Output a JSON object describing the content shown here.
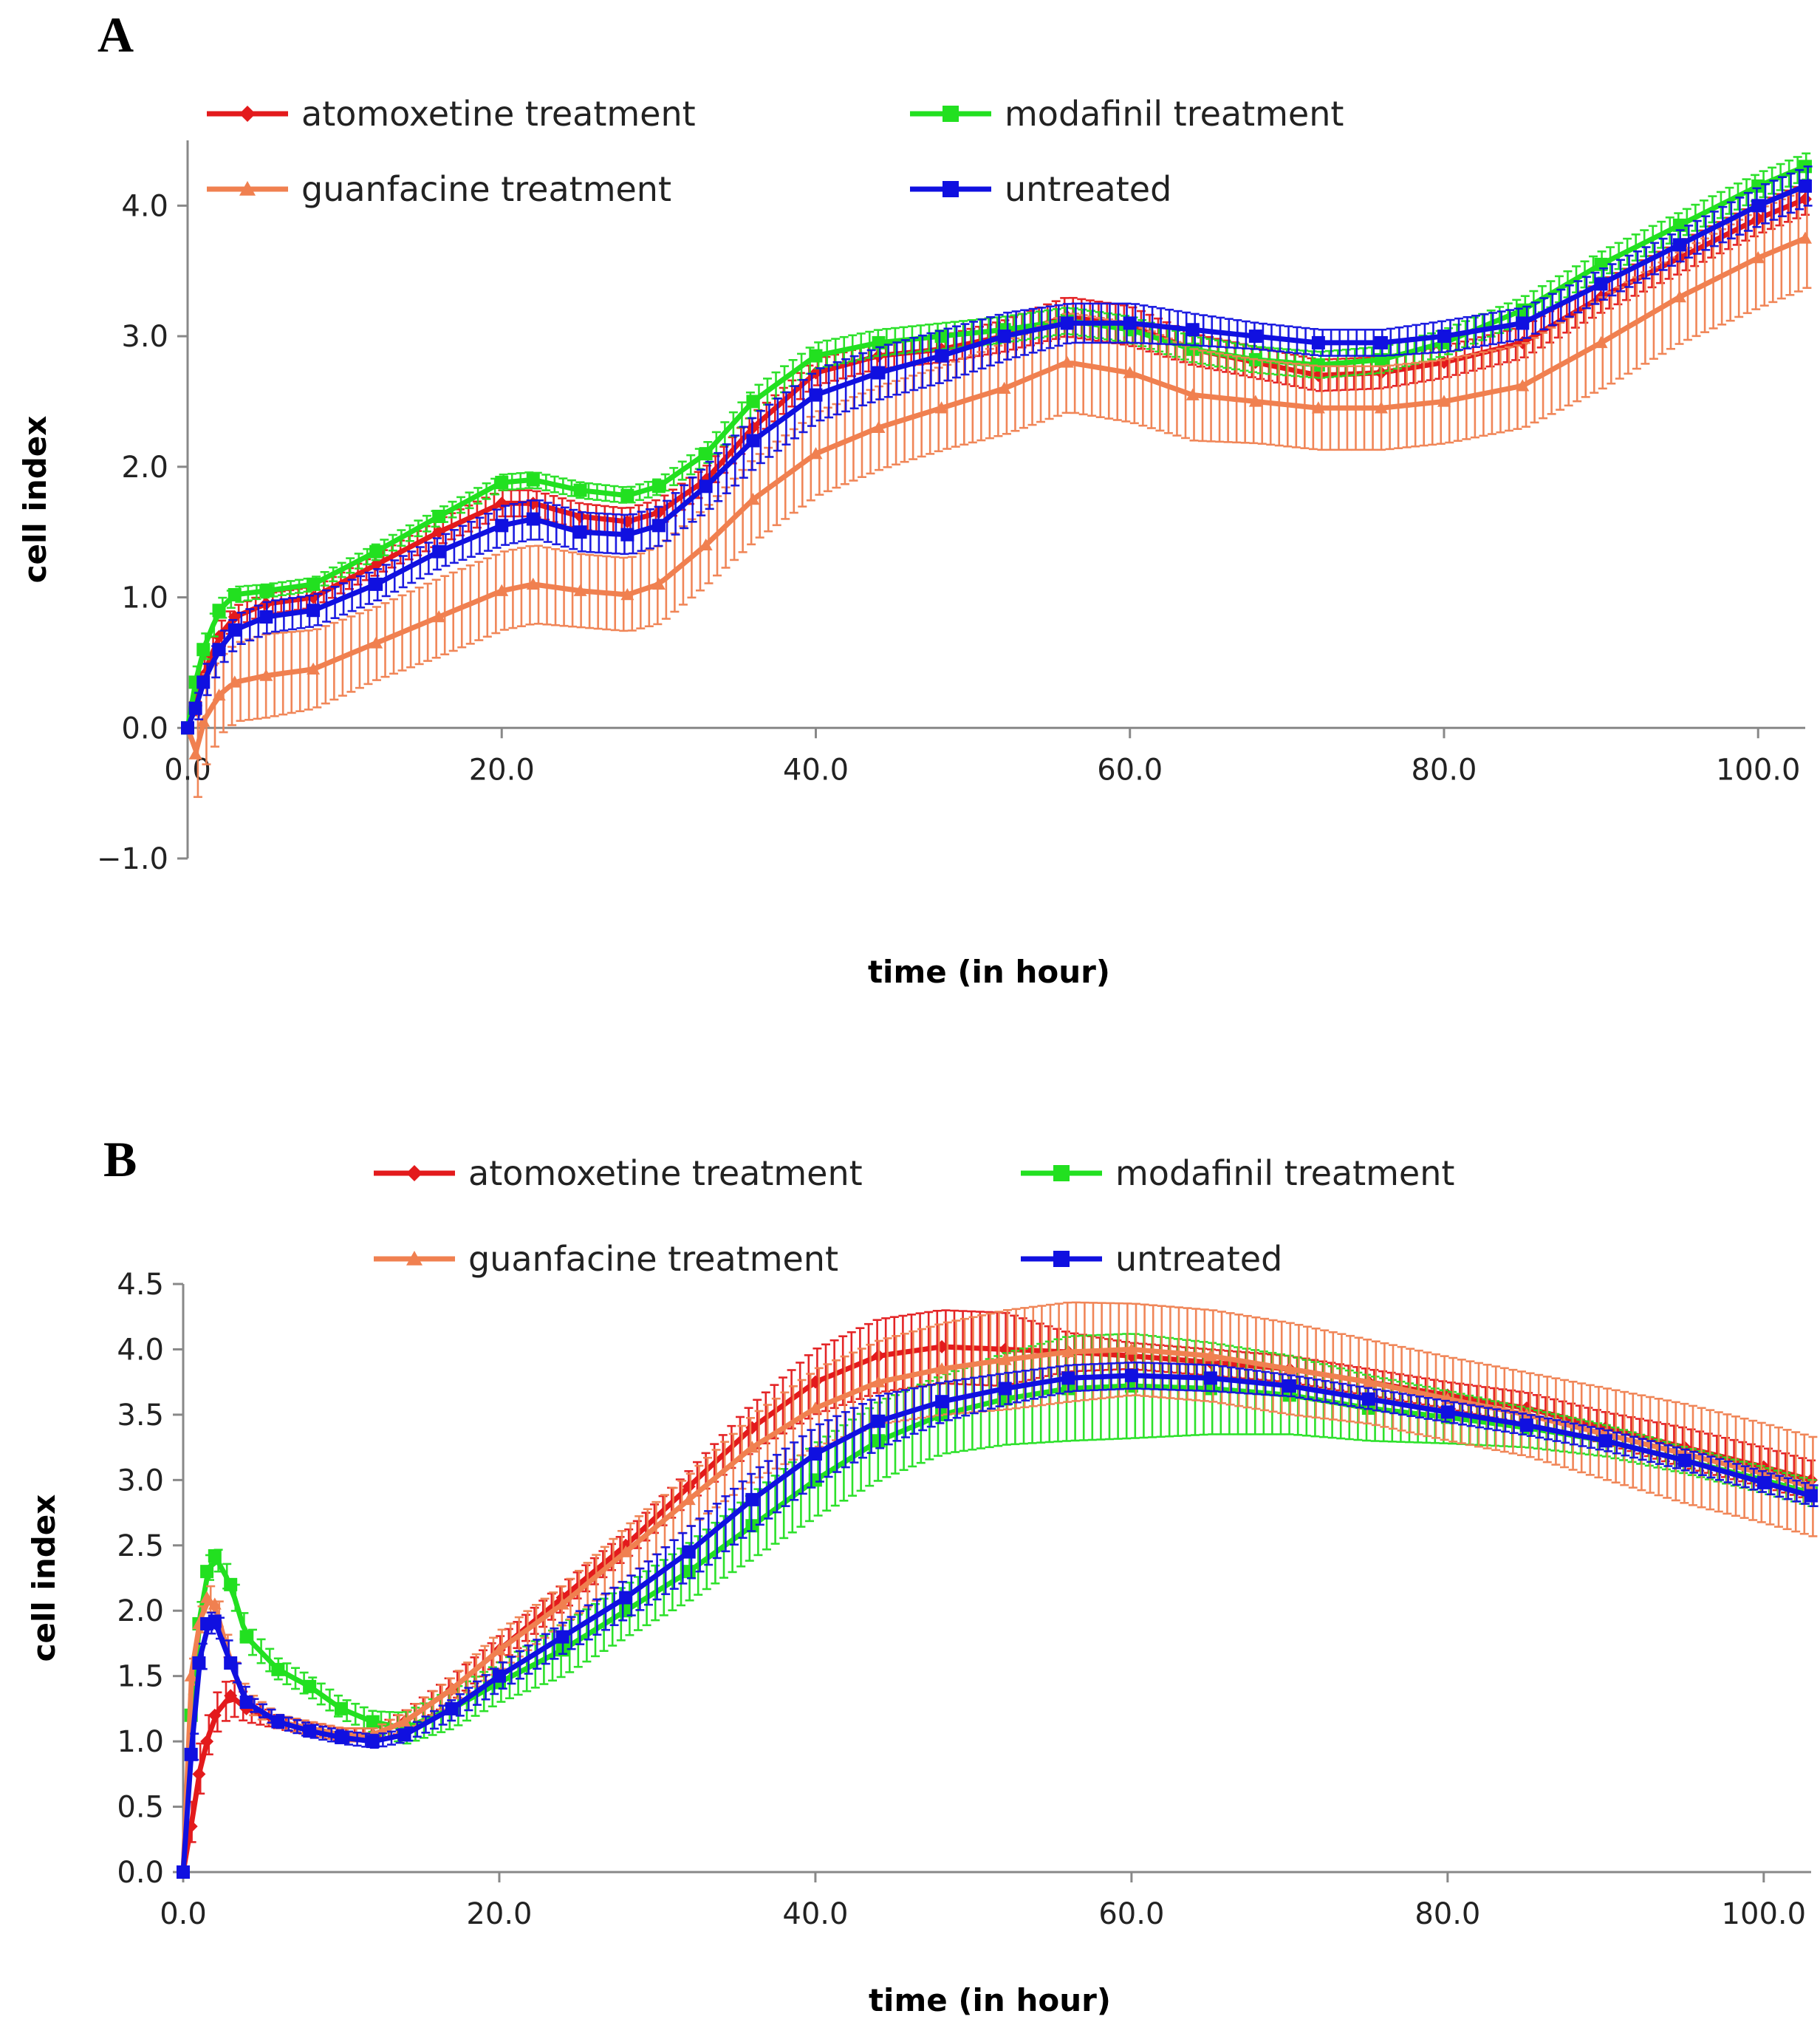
{
  "chart_data": [
    {
      "panel": "A",
      "type": "line",
      "xlabel": "time (in hour)",
      "ylabel": "cell index",
      "xlim": [
        0,
        103
      ],
      "ylim": [
        -1.0,
        4.5
      ],
      "xticks": [
        0,
        20,
        40,
        60,
        80,
        100
      ],
      "xtick_labels": [
        "0.0",
        "20.0",
        "40.0",
        "60.0",
        "80.0",
        "100.0"
      ],
      "yticks": [
        -1,
        0,
        1,
        2,
        3,
        4
      ],
      "ytick_labels": [
        "−1.0",
        "0.0",
        "1.0",
        "2.0",
        "3.0",
        "4.0"
      ],
      "legend": {
        "placement": "top-left"
      },
      "x": [
        0,
        0.5,
        1,
        2,
        3,
        5,
        8,
        12,
        16,
        20,
        22,
        25,
        28,
        30,
        33,
        36,
        40,
        44,
        48,
        52,
        56,
        60,
        64,
        68,
        72,
        76,
        80,
        85,
        90,
        95,
        100,
        103
      ],
      "series": [
        {
          "name": "atomoxetine treatment",
          "color": "#e31a1c",
          "marker": "diamond",
          "values": [
            0,
            0.2,
            0.4,
            0.7,
            0.85,
            0.95,
            1.0,
            1.25,
            1.5,
            1.72,
            1.72,
            1.62,
            1.58,
            1.65,
            1.9,
            2.3,
            2.72,
            2.85,
            2.9,
            3.0,
            3.15,
            3.08,
            2.9,
            2.8,
            2.7,
            2.72,
            2.8,
            2.95,
            3.3,
            3.6,
            3.9,
            4.05
          ],
          "error": [
            0,
            0.12,
            0.12,
            0.1,
            0.08,
            0.08,
            0.08,
            0.08,
            0.1,
            0.1,
            0.1,
            0.1,
            0.1,
            0.1,
            0.1,
            0.1,
            0.1,
            0.1,
            0.1,
            0.12,
            0.15,
            0.15,
            0.12,
            0.12,
            0.12,
            0.12,
            0.12,
            0.12,
            0.12,
            0.12,
            0.12,
            0.12
          ]
        },
        {
          "name": "modafinil treatment",
          "color": "#22e020",
          "marker": "square",
          "values": [
            0,
            0.35,
            0.6,
            0.9,
            1.02,
            1.05,
            1.1,
            1.35,
            1.62,
            1.88,
            1.9,
            1.82,
            1.78,
            1.85,
            2.1,
            2.5,
            2.85,
            2.95,
            3.0,
            3.05,
            3.12,
            3.05,
            2.9,
            2.82,
            2.78,
            2.82,
            2.95,
            3.2,
            3.55,
            3.85,
            4.15,
            4.3
          ],
          "error": [
            0,
            0.1,
            0.1,
            0.08,
            0.06,
            0.05,
            0.05,
            0.06,
            0.06,
            0.06,
            0.06,
            0.06,
            0.06,
            0.06,
            0.08,
            0.1,
            0.1,
            0.1,
            0.1,
            0.1,
            0.1,
            0.1,
            0.1,
            0.1,
            0.1,
            0.1,
            0.1,
            0.1,
            0.1,
            0.1,
            0.1,
            0.1
          ]
        },
        {
          "name": "guanfacine treatment",
          "color": "#f08050",
          "marker": "triangle",
          "values": [
            0,
            -0.2,
            0.05,
            0.25,
            0.35,
            0.4,
            0.45,
            0.65,
            0.85,
            1.05,
            1.1,
            1.05,
            1.02,
            1.1,
            1.4,
            1.75,
            2.1,
            2.3,
            2.45,
            2.6,
            2.8,
            2.72,
            2.55,
            2.5,
            2.45,
            2.45,
            2.5,
            2.62,
            2.95,
            3.3,
            3.6,
            3.75
          ],
          "error": [
            0,
            0.35,
            0.35,
            0.3,
            0.3,
            0.32,
            0.3,
            0.28,
            0.3,
            0.3,
            0.3,
            0.28,
            0.28,
            0.3,
            0.3,
            0.32,
            0.32,
            0.32,
            0.32,
            0.35,
            0.38,
            0.38,
            0.35,
            0.32,
            0.32,
            0.32,
            0.32,
            0.32,
            0.35,
            0.35,
            0.38,
            0.38
          ]
        },
        {
          "name": "untreated",
          "color": "#1010e0",
          "marker": "square",
          "values": [
            0,
            0.15,
            0.35,
            0.6,
            0.75,
            0.85,
            0.9,
            1.1,
            1.35,
            1.55,
            1.6,
            1.5,
            1.48,
            1.55,
            1.85,
            2.2,
            2.55,
            2.72,
            2.85,
            3.0,
            3.1,
            3.1,
            3.05,
            3.0,
            2.95,
            2.95,
            3.0,
            3.1,
            3.4,
            3.7,
            4.0,
            4.15
          ],
          "error": [
            0,
            0.1,
            0.12,
            0.12,
            0.12,
            0.12,
            0.12,
            0.12,
            0.12,
            0.15,
            0.15,
            0.15,
            0.15,
            0.15,
            0.18,
            0.2,
            0.2,
            0.2,
            0.2,
            0.18,
            0.15,
            0.15,
            0.12,
            0.1,
            0.1,
            0.1,
            0.12,
            0.12,
            0.12,
            0.12,
            0.15,
            0.15
          ]
        }
      ]
    },
    {
      "panel": "B",
      "type": "line",
      "xlabel": "time (in hour)",
      "ylabel": "cell index",
      "xlim": [
        0,
        103
      ],
      "ylim": [
        0,
        4.5
      ],
      "xticks": [
        0,
        20,
        40,
        60,
        80,
        100
      ],
      "xtick_labels": [
        "0.0",
        "20.0",
        "40.0",
        "60.0",
        "80.0",
        "100.0"
      ],
      "yticks": [
        0,
        0.5,
        1,
        1.5,
        2,
        2.5,
        3,
        3.5,
        4,
        4.5
      ],
      "ytick_labels": [
        "0.0",
        "0.5",
        "1.0",
        "1.5",
        "2.0",
        "2.5",
        "3.0",
        "3.5",
        "4.0",
        "4.5"
      ],
      "legend": {
        "placement": "top-center"
      },
      "x": [
        0,
        0.5,
        1,
        1.5,
        2,
        3,
        4,
        6,
        8,
        10,
        12,
        14,
        17,
        20,
        24,
        28,
        32,
        36,
        40,
        44,
        48,
        52,
        56,
        60,
        65,
        70,
        75,
        80,
        85,
        90,
        95,
        100,
        103
      ],
      "series": [
        {
          "name": "atomoxetine treatment",
          "color": "#e31a1c",
          "marker": "diamond",
          "values": [
            0,
            0.35,
            0.75,
            1.0,
            1.2,
            1.35,
            1.25,
            1.15,
            1.1,
            1.05,
            1.05,
            1.15,
            1.4,
            1.7,
            2.1,
            2.5,
            2.95,
            3.4,
            3.75,
            3.95,
            4.02,
            4.0,
            3.98,
            3.95,
            3.9,
            3.85,
            3.75,
            3.65,
            3.55,
            3.4,
            3.25,
            3.1,
            3.0
          ],
          "error": [
            0,
            0.15,
            0.2,
            0.15,
            0.15,
            0.15,
            0.1,
            0.05,
            0.05,
            0.05,
            0.05,
            0.08,
            0.1,
            0.1,
            0.1,
            0.1,
            0.12,
            0.18,
            0.25,
            0.28,
            0.28,
            0.28,
            0.15,
            0.1,
            0.1,
            0.1,
            0.1,
            0.1,
            0.12,
            0.12,
            0.15,
            0.15,
            0.15
          ]
        },
        {
          "name": "modafinil treatment",
          "color": "#22e020",
          "marker": "square",
          "values": [
            0,
            1.2,
            1.9,
            2.3,
            2.42,
            2.2,
            1.8,
            1.55,
            1.42,
            1.25,
            1.15,
            1.1,
            1.25,
            1.45,
            1.7,
            2.0,
            2.3,
            2.65,
            3.0,
            3.3,
            3.5,
            3.62,
            3.7,
            3.72,
            3.7,
            3.65,
            3.55,
            3.48,
            3.4,
            3.3,
            3.15,
            3.0,
            2.9
          ],
          "error": [
            0,
            0.1,
            0.1,
            0.1,
            0.08,
            0.1,
            0.1,
            0.08,
            0.08,
            0.08,
            0.08,
            0.12,
            0.15,
            0.15,
            0.2,
            0.2,
            0.22,
            0.25,
            0.28,
            0.3,
            0.3,
            0.35,
            0.4,
            0.4,
            0.35,
            0.3,
            0.25,
            0.2,
            0.15,
            0.12,
            0.1,
            0.1,
            0.1
          ]
        },
        {
          "name": "guanfacine treatment",
          "color": "#f08050",
          "marker": "triangle",
          "values": [
            0,
            1.5,
            1.9,
            2.1,
            2.05,
            1.6,
            1.3,
            1.15,
            1.1,
            1.05,
            1.05,
            1.15,
            1.4,
            1.7,
            2.05,
            2.45,
            2.85,
            3.25,
            3.55,
            3.75,
            3.85,
            3.92,
            3.98,
            4.0,
            3.95,
            3.85,
            3.75,
            3.62,
            3.5,
            3.35,
            3.2,
            3.05,
            2.95
          ],
          "error": [
            0,
            0.1,
            0.1,
            0.1,
            0.1,
            0.08,
            0.08,
            0.05,
            0.05,
            0.05,
            0.05,
            0.08,
            0.1,
            0.15,
            0.15,
            0.2,
            0.2,
            0.25,
            0.3,
            0.32,
            0.35,
            0.38,
            0.38,
            0.35,
            0.35,
            0.35,
            0.32,
            0.32,
            0.32,
            0.35,
            0.38,
            0.38,
            0.38
          ]
        },
        {
          "name": "untreated",
          "color": "#1010e0",
          "marker": "square",
          "values": [
            0,
            0.9,
            1.6,
            1.9,
            1.92,
            1.6,
            1.3,
            1.15,
            1.08,
            1.03,
            1.0,
            1.05,
            1.25,
            1.5,
            1.8,
            2.1,
            2.45,
            2.85,
            3.2,
            3.45,
            3.6,
            3.7,
            3.78,
            3.8,
            3.78,
            3.72,
            3.62,
            3.52,
            3.42,
            3.3,
            3.15,
            2.98,
            2.88
          ],
          "error": [
            0,
            0.1,
            0.1,
            0.08,
            0.08,
            0.08,
            0.05,
            0.05,
            0.05,
            0.05,
            0.05,
            0.05,
            0.08,
            0.1,
            0.12,
            0.15,
            0.2,
            0.22,
            0.22,
            0.2,
            0.15,
            0.12,
            0.1,
            0.1,
            0.1,
            0.08,
            0.08,
            0.08,
            0.08,
            0.08,
            0.08,
            0.08,
            0.08
          ]
        }
      ]
    }
  ]
}
